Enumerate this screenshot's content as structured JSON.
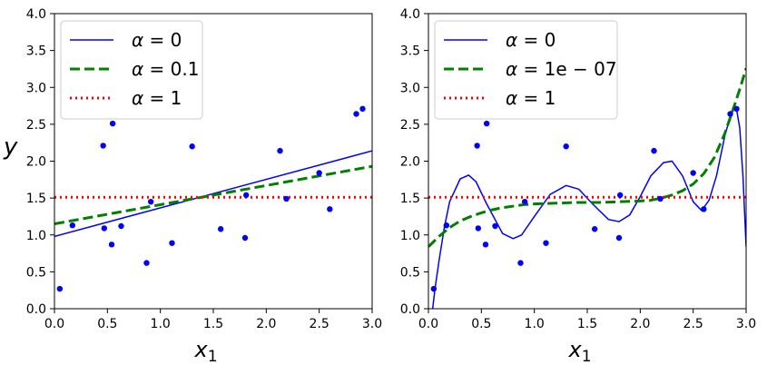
{
  "chart_data": [
    {
      "type": "line",
      "xlabel": "x",
      "xlabel_sub": "1",
      "ylabel": "y",
      "xlim": [
        0,
        3
      ],
      "ylim": [
        0,
        4
      ],
      "xticks": [
        "0.0",
        "0.5",
        "1.0",
        "1.5",
        "2.0",
        "2.5",
        "3.0"
      ],
      "yticks": [
        "0.0",
        "0.5",
        "1.0",
        "1.5",
        "2.0",
        "2.5",
        "3.0",
        "3.5",
        "4.0"
      ],
      "legend_position": "top-left",
      "grid": false,
      "points": {
        "color": "#0000ff",
        "x": [
          0.05,
          0.17,
          0.46,
          0.47,
          0.54,
          0.55,
          0.63,
          0.87,
          0.91,
          1.11,
          1.3,
          1.57,
          1.8,
          1.81,
          2.13,
          2.19,
          2.5,
          2.6,
          2.85,
          2.91
        ],
        "y": [
          0.27,
          1.13,
          2.21,
          1.09,
          0.87,
          2.51,
          1.12,
          0.62,
          1.45,
          0.89,
          2.2,
          1.08,
          0.96,
          1.54,
          2.14,
          1.49,
          1.84,
          1.35,
          2.64,
          2.71
        ]
      },
      "series": [
        {
          "name_prefix": "α = ",
          "name_value": "0",
          "color": "#0000ff",
          "style": "solid",
          "x": [
            0,
            3
          ],
          "y": [
            0.98,
            2.14
          ]
        },
        {
          "name_prefix": "α = ",
          "name_value": "0.1",
          "color": "#008000",
          "style": "dashed",
          "x": [
            0,
            3
          ],
          "y": [
            1.15,
            1.93
          ]
        },
        {
          "name_prefix": "α = ",
          "name_value": "1",
          "color": "#ff0000",
          "style": "dotted",
          "x": [
            0,
            3
          ],
          "y": [
            1.51,
            1.51
          ]
        }
      ]
    },
    {
      "type": "line",
      "xlabel": "x",
      "xlabel_sub": "1",
      "ylabel": "",
      "xlim": [
        0,
        3
      ],
      "ylim": [
        0,
        4
      ],
      "xticks": [
        "0.0",
        "0.5",
        "1.0",
        "1.5",
        "2.0",
        "2.5",
        "3.0"
      ],
      "yticks": [
        "0.0",
        "0.5",
        "1.0",
        "1.5",
        "2.0",
        "2.5",
        "3.0",
        "3.5",
        "4.0"
      ],
      "legend_position": "top-left",
      "grid": false,
      "points": {
        "color": "#0000ff",
        "x": [
          0.05,
          0.17,
          0.46,
          0.47,
          0.54,
          0.55,
          0.63,
          0.87,
          0.91,
          1.11,
          1.3,
          1.57,
          1.8,
          1.81,
          2.13,
          2.19,
          2.5,
          2.6,
          2.85,
          2.91
        ],
        "y": [
          0.27,
          1.13,
          2.21,
          1.09,
          0.87,
          2.51,
          1.12,
          0.62,
          1.45,
          0.89,
          2.2,
          1.08,
          0.96,
          1.54,
          2.14,
          1.49,
          1.84,
          1.35,
          2.64,
          2.71
        ]
      },
      "series": [
        {
          "name_prefix": "α = ",
          "name_value": "0",
          "color": "#0000ff",
          "style": "solid",
          "x": [
            0.04,
            0.06,
            0.1,
            0.15,
            0.2,
            0.3,
            0.38,
            0.45,
            0.55,
            0.7,
            0.8,
            0.88,
            1.0,
            1.15,
            1.3,
            1.42,
            1.55,
            1.7,
            1.8,
            1.9,
            2.0,
            2.1,
            2.22,
            2.3,
            2.4,
            2.5,
            2.58,
            2.65,
            2.72,
            2.8,
            2.85,
            2.88,
            2.91,
            2.94,
            2.97,
            3.0
          ],
          "y": [
            0.0,
            0.25,
            0.65,
            1.1,
            1.45,
            1.76,
            1.81,
            1.72,
            1.42,
            1.02,
            0.95,
            1.0,
            1.25,
            1.55,
            1.67,
            1.62,
            1.42,
            1.21,
            1.18,
            1.27,
            1.52,
            1.8,
            1.98,
            2.0,
            1.8,
            1.45,
            1.33,
            1.47,
            1.8,
            2.35,
            2.6,
            2.72,
            2.7,
            2.45,
            1.8,
            0.84
          ]
        },
        {
          "name_prefix": "α = ",
          "name_value": "1e − 07",
          "color": "#008000",
          "style": "dashed",
          "x": [
            0.0,
            0.1,
            0.2,
            0.3,
            0.4,
            0.5,
            0.6,
            0.7,
            0.8,
            0.9,
            1.0,
            1.2,
            1.4,
            1.6,
            1.8,
            2.0,
            2.1,
            2.2,
            2.3,
            2.4,
            2.5,
            2.6,
            2.7,
            2.8,
            2.9,
            2.95,
            3.0
          ],
          "y": [
            0.84,
            0.98,
            1.1,
            1.19,
            1.25,
            1.3,
            1.34,
            1.37,
            1.39,
            1.41,
            1.42,
            1.43,
            1.44,
            1.44,
            1.45,
            1.46,
            1.47,
            1.5,
            1.54,
            1.6,
            1.69,
            1.83,
            2.05,
            2.38,
            2.8,
            3.02,
            3.26
          ]
        },
        {
          "name_prefix": "α = ",
          "name_value": "1",
          "color": "#ff0000",
          "style": "dotted",
          "x": [
            0,
            3
          ],
          "y": [
            1.51,
            1.51
          ]
        }
      ]
    }
  ]
}
